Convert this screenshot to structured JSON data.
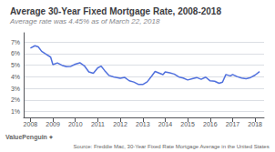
{
  "chart_data": {
    "type": "line",
    "title": "Average 30-Year Fixed Mortgage Rate, 2008-2018",
    "subtitle": "Average rate was 4.45% as of March 22, 2018",
    "annotations": [
      "ValuePenguin ⌖",
      "Source: Freddie Mac, 30-Year Fixed Rate Mortgage Average in the United States"
    ],
    "x": [
      2008.0,
      2008.2,
      2008.35,
      2008.5,
      2008.7,
      2008.9,
      2009.0,
      2009.2,
      2009.4,
      2009.6,
      2009.8,
      2010.0,
      2010.2,
      2010.4,
      2010.6,
      2010.8,
      2011.0,
      2011.15,
      2011.3,
      2011.5,
      2011.7,
      2011.9,
      2012.0,
      2012.2,
      2012.4,
      2012.6,
      2012.8,
      2013.0,
      2013.2,
      2013.4,
      2013.55,
      2013.7,
      2013.9,
      2014.0,
      2014.2,
      2014.4,
      2014.6,
      2014.8,
      2015.0,
      2015.2,
      2015.4,
      2015.6,
      2015.8,
      2016.0,
      2016.2,
      2016.4,
      2016.55,
      2016.7,
      2016.9,
      2017.0,
      2017.2,
      2017.4,
      2017.6,
      2017.8,
      2018.0,
      2018.2
    ],
    "values": [
      6.48,
      6.68,
      6.58,
      6.2,
      5.95,
      5.7,
      5.05,
      5.2,
      5.0,
      4.88,
      4.9,
      5.09,
      5.21,
      4.95,
      4.42,
      4.3,
      4.78,
      4.92,
      4.55,
      4.12,
      3.99,
      3.92,
      3.87,
      3.95,
      3.66,
      3.55,
      3.35,
      3.34,
      3.57,
      4.07,
      4.46,
      4.35,
      4.19,
      4.43,
      4.34,
      4.24,
      4.0,
      3.89,
      3.73,
      3.84,
      3.94,
      3.79,
      3.97,
      3.65,
      3.62,
      3.44,
      3.54,
      4.2,
      4.08,
      4.2,
      4.02,
      3.9,
      3.83,
      3.94,
      4.15,
      4.45
    ],
    "xlim": [
      2007.7,
      2018.4
    ],
    "xticks": [
      2008,
      2009,
      2010,
      2011,
      2012,
      2013,
      2014,
      2015,
      2016,
      2017,
      2018
    ],
    "ylim": [
      0.5,
      7.8
    ],
    "yticks": [
      {
        "value": 1,
        "label": "1%"
      },
      {
        "value": 2,
        "label": "2%"
      },
      {
        "value": 3,
        "label": "3%"
      },
      {
        "value": 4,
        "label": "4%"
      },
      {
        "value": 5,
        "label": "5%"
      },
      {
        "value": 6,
        "label": "6%"
      },
      {
        "value": 7,
        "label": "7%"
      }
    ],
    "grid": true
  }
}
